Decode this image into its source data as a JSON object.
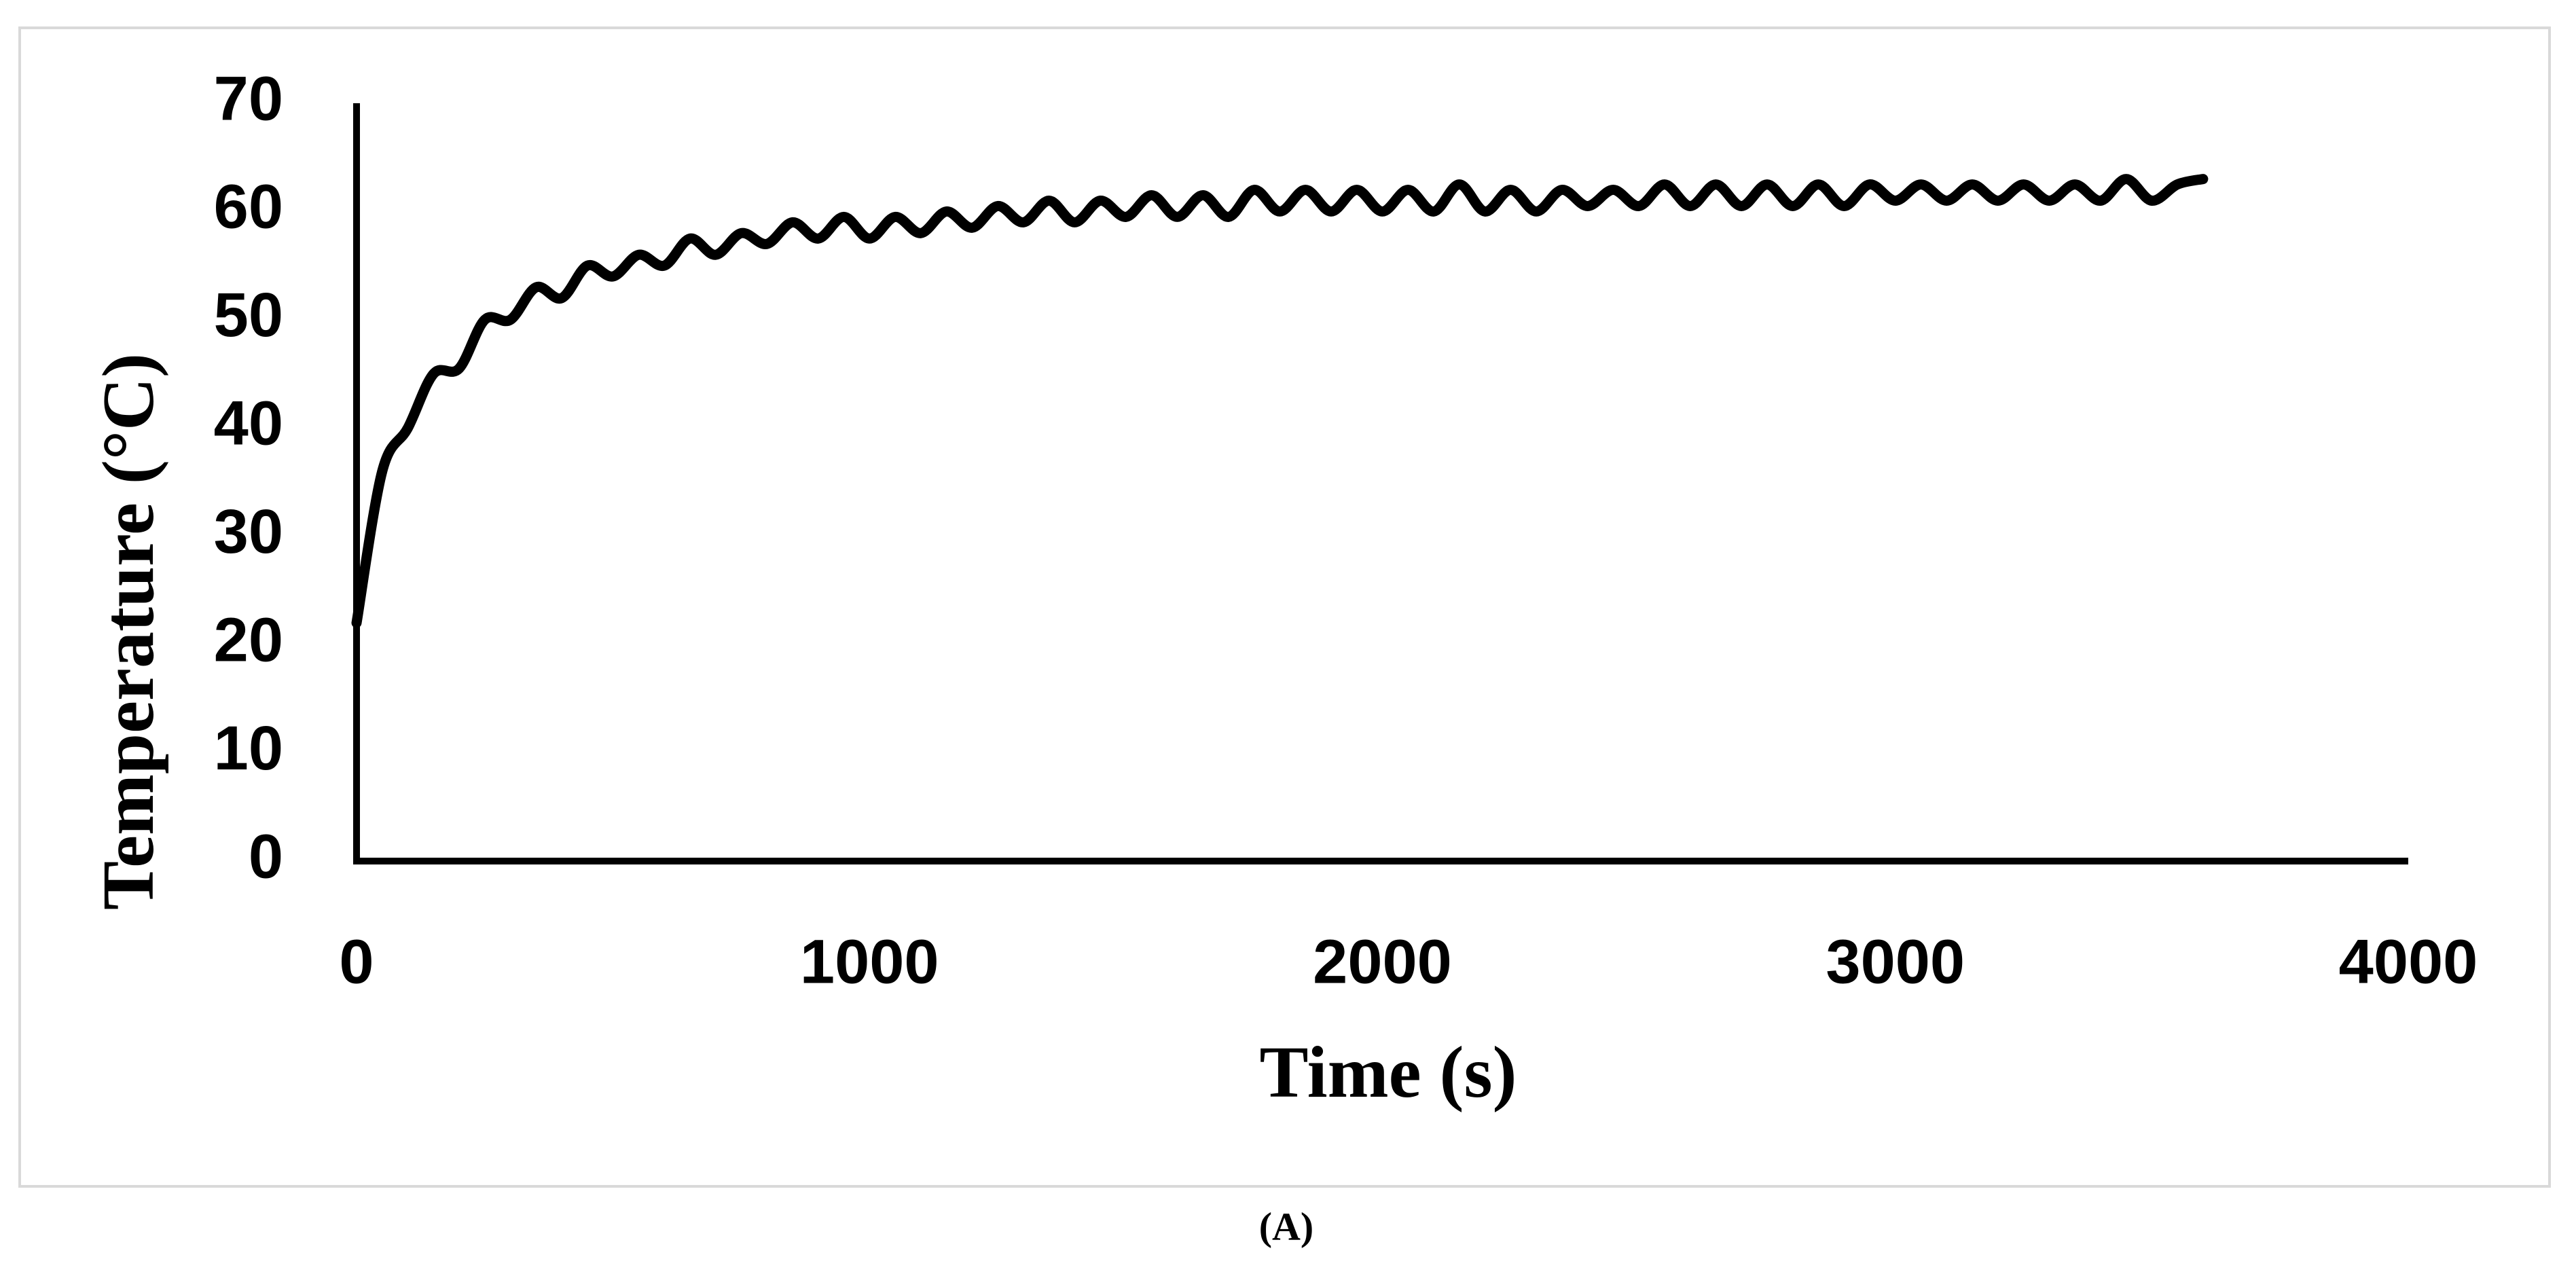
{
  "chart_data": {
    "type": "line",
    "xlabel": "Time (s)",
    "ylabel": "Temperature (°C)",
    "caption": "(A)",
    "x": [
      0,
      50,
      100,
      150,
      200,
      250,
      300,
      350,
      400,
      450,
      500,
      550,
      600,
      650,
      700,
      750,
      800,
      850,
      900,
      950,
      1000,
      1050,
      1100,
      1150,
      1200,
      1250,
      1300,
      1350,
      1400,
      1450,
      1500,
      1550,
      1600,
      1650,
      1700,
      1750,
      1800,
      1850,
      1900,
      1950,
      2000,
      2050,
      2100,
      2150,
      2200,
      2250,
      2300,
      2350,
      2400,
      2450,
      2500,
      2550,
      2600,
      2650,
      2700,
      2750,
      2800,
      2850,
      2900,
      2950,
      3000,
      3050,
      3100,
      3150,
      3200,
      3250,
      3300,
      3350,
      3400,
      3450,
      3500,
      3550,
      3600
    ],
    "series": [
      {
        "color": "#000000",
        "values": [
          22,
          36,
          40,
          45,
          45.5,
          50,
          50,
          53,
          52,
          55,
          54,
          56,
          55,
          57.5,
          56,
          58,
          57,
          59,
          57.5,
          59.5,
          57.5,
          59.5,
          58,
          60,
          58.5,
          60.5,
          59,
          61,
          59,
          61,
          59.5,
          61.5,
          59.5,
          61.5,
          59.5,
          62,
          60,
          62,
          60,
          62,
          60,
          62,
          60,
          62.5,
          60,
          62,
          60,
          62,
          60.5,
          62,
          60.5,
          62.5,
          60.5,
          62.5,
          60.5,
          62.5,
          60.5,
          62.5,
          60.5,
          62.5,
          61,
          62.5,
          61,
          62.5,
          61,
          62.5,
          61,
          62.5,
          61,
          63,
          61,
          62.5,
          63
        ]
      }
    ],
    "xlim": [
      0,
      4000
    ],
    "xticks": [
      0,
      1000,
      2000,
      3000,
      4000
    ],
    "ylim": [
      0,
      70
    ],
    "yticks": [
      0,
      10,
      20,
      30,
      40,
      50,
      60,
      70
    ],
    "grid": false
  }
}
